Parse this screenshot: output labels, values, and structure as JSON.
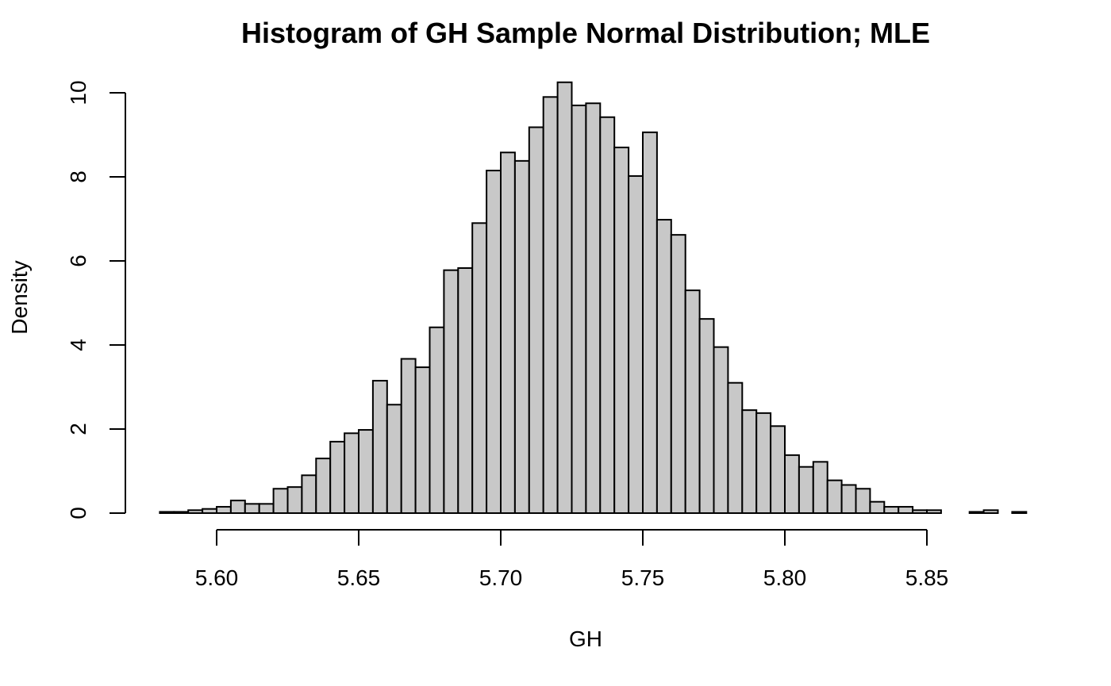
{
  "chart_data": {
    "type": "bar",
    "title": "Histogram of GH Sample Normal Distribution; MLE",
    "xlabel": "GH",
    "ylabel": "Density",
    "bin_width": 0.005,
    "bin_start": 5.58,
    "xlim": [
      5.58,
      5.885
    ],
    "ylim": [
      0,
      10.3
    ],
    "x_ticks": [
      5.6,
      5.65,
      5.7,
      5.75,
      5.8,
      5.85
    ],
    "x_tick_labels": [
      "5.60",
      "5.65",
      "5.70",
      "5.75",
      "5.80",
      "5.85"
    ],
    "y_ticks": [
      0,
      2,
      4,
      6,
      8,
      10
    ],
    "y_tick_labels": [
      "0",
      "2",
      "4",
      "6",
      "8",
      "10"
    ],
    "bar_color": "#c8c8c8",
    "values": [
      0.03,
      0.03,
      0.07,
      0.1,
      0.15,
      0.3,
      0.22,
      0.22,
      0.58,
      0.62,
      0.9,
      1.3,
      1.7,
      1.9,
      1.98,
      3.15,
      2.58,
      3.67,
      3.47,
      4.42,
      5.78,
      5.83,
      6.9,
      8.15,
      8.58,
      8.38,
      9.18,
      9.9,
      10.25,
      9.7,
      9.75,
      9.42,
      8.7,
      8.02,
      9.06,
      6.98,
      6.62,
      5.3,
      4.62,
      3.95,
      3.1,
      2.45,
      2.38,
      2.07,
      1.38,
      1.1,
      1.22,
      0.78,
      0.67,
      0.58,
      0.27,
      0.15,
      0.15,
      0.07,
      0.07,
      0.0,
      0.0,
      0.03,
      0.07,
      0.0,
      0.03
    ]
  }
}
